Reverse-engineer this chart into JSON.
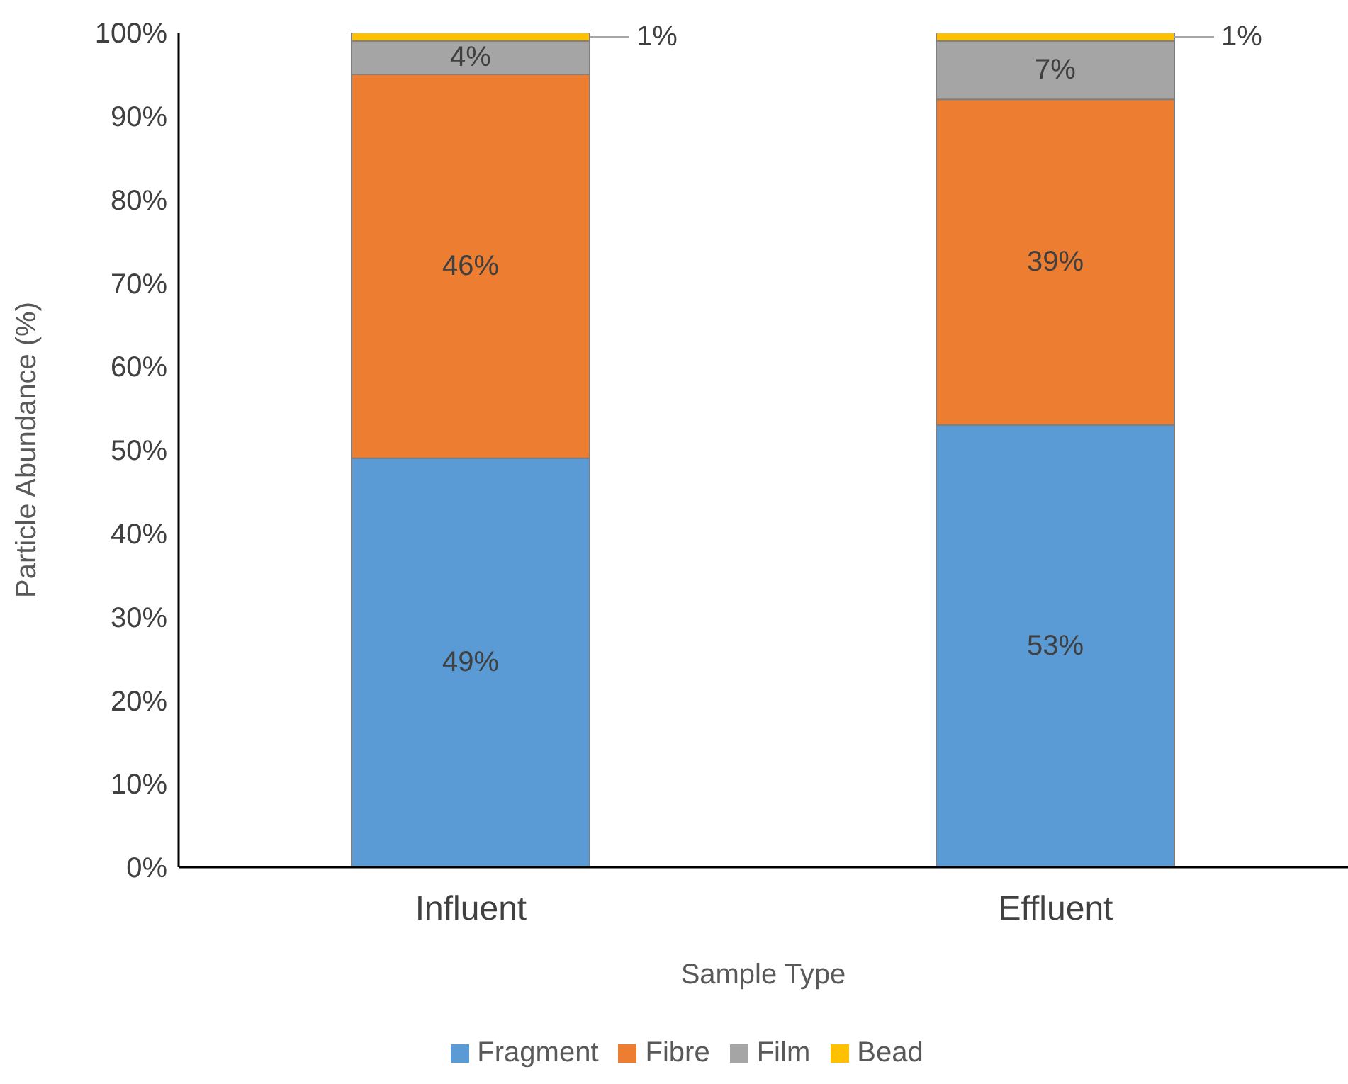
{
  "chart_data": {
    "type": "bar",
    "stacked": true,
    "xlabel": "Sample Type",
    "ylabel": "Particle Abundance (%)",
    "categories": [
      "Influent",
      "Effluent"
    ],
    "series": [
      {
        "name": "Fragment",
        "color": "#5b9bd5",
        "values": [
          49,
          53
        ],
        "value_labels": [
          "49%",
          "53%"
        ]
      },
      {
        "name": "Fibre",
        "color": "#ed7d31",
        "values": [
          46,
          39
        ],
        "value_labels": [
          "46%",
          "39%"
        ]
      },
      {
        "name": "Film",
        "color": "#a5a5a5",
        "values": [
          4,
          7
        ],
        "value_labels": [
          "4%",
          "7%"
        ]
      },
      {
        "name": "Bead",
        "color": "#ffc000",
        "values": [
          1,
          1
        ],
        "value_labels": [
          "1%",
          "1%"
        ]
      }
    ],
    "ylim": [
      0,
      100
    ],
    "yticks": [
      {
        "value": 0,
        "label": "0%"
      },
      {
        "value": 10,
        "label": "10%"
      },
      {
        "value": 20,
        "label": "20%"
      },
      {
        "value": 30,
        "label": "30%"
      },
      {
        "value": 40,
        "label": "40%"
      },
      {
        "value": 50,
        "label": "50%"
      },
      {
        "value": 60,
        "label": "60%"
      },
      {
        "value": 70,
        "label": "70%"
      },
      {
        "value": 80,
        "label": "80%"
      },
      {
        "value": 90,
        "label": "90%"
      },
      {
        "value": 100,
        "label": "100%"
      }
    ],
    "grid": false,
    "legend": "bottom"
  }
}
